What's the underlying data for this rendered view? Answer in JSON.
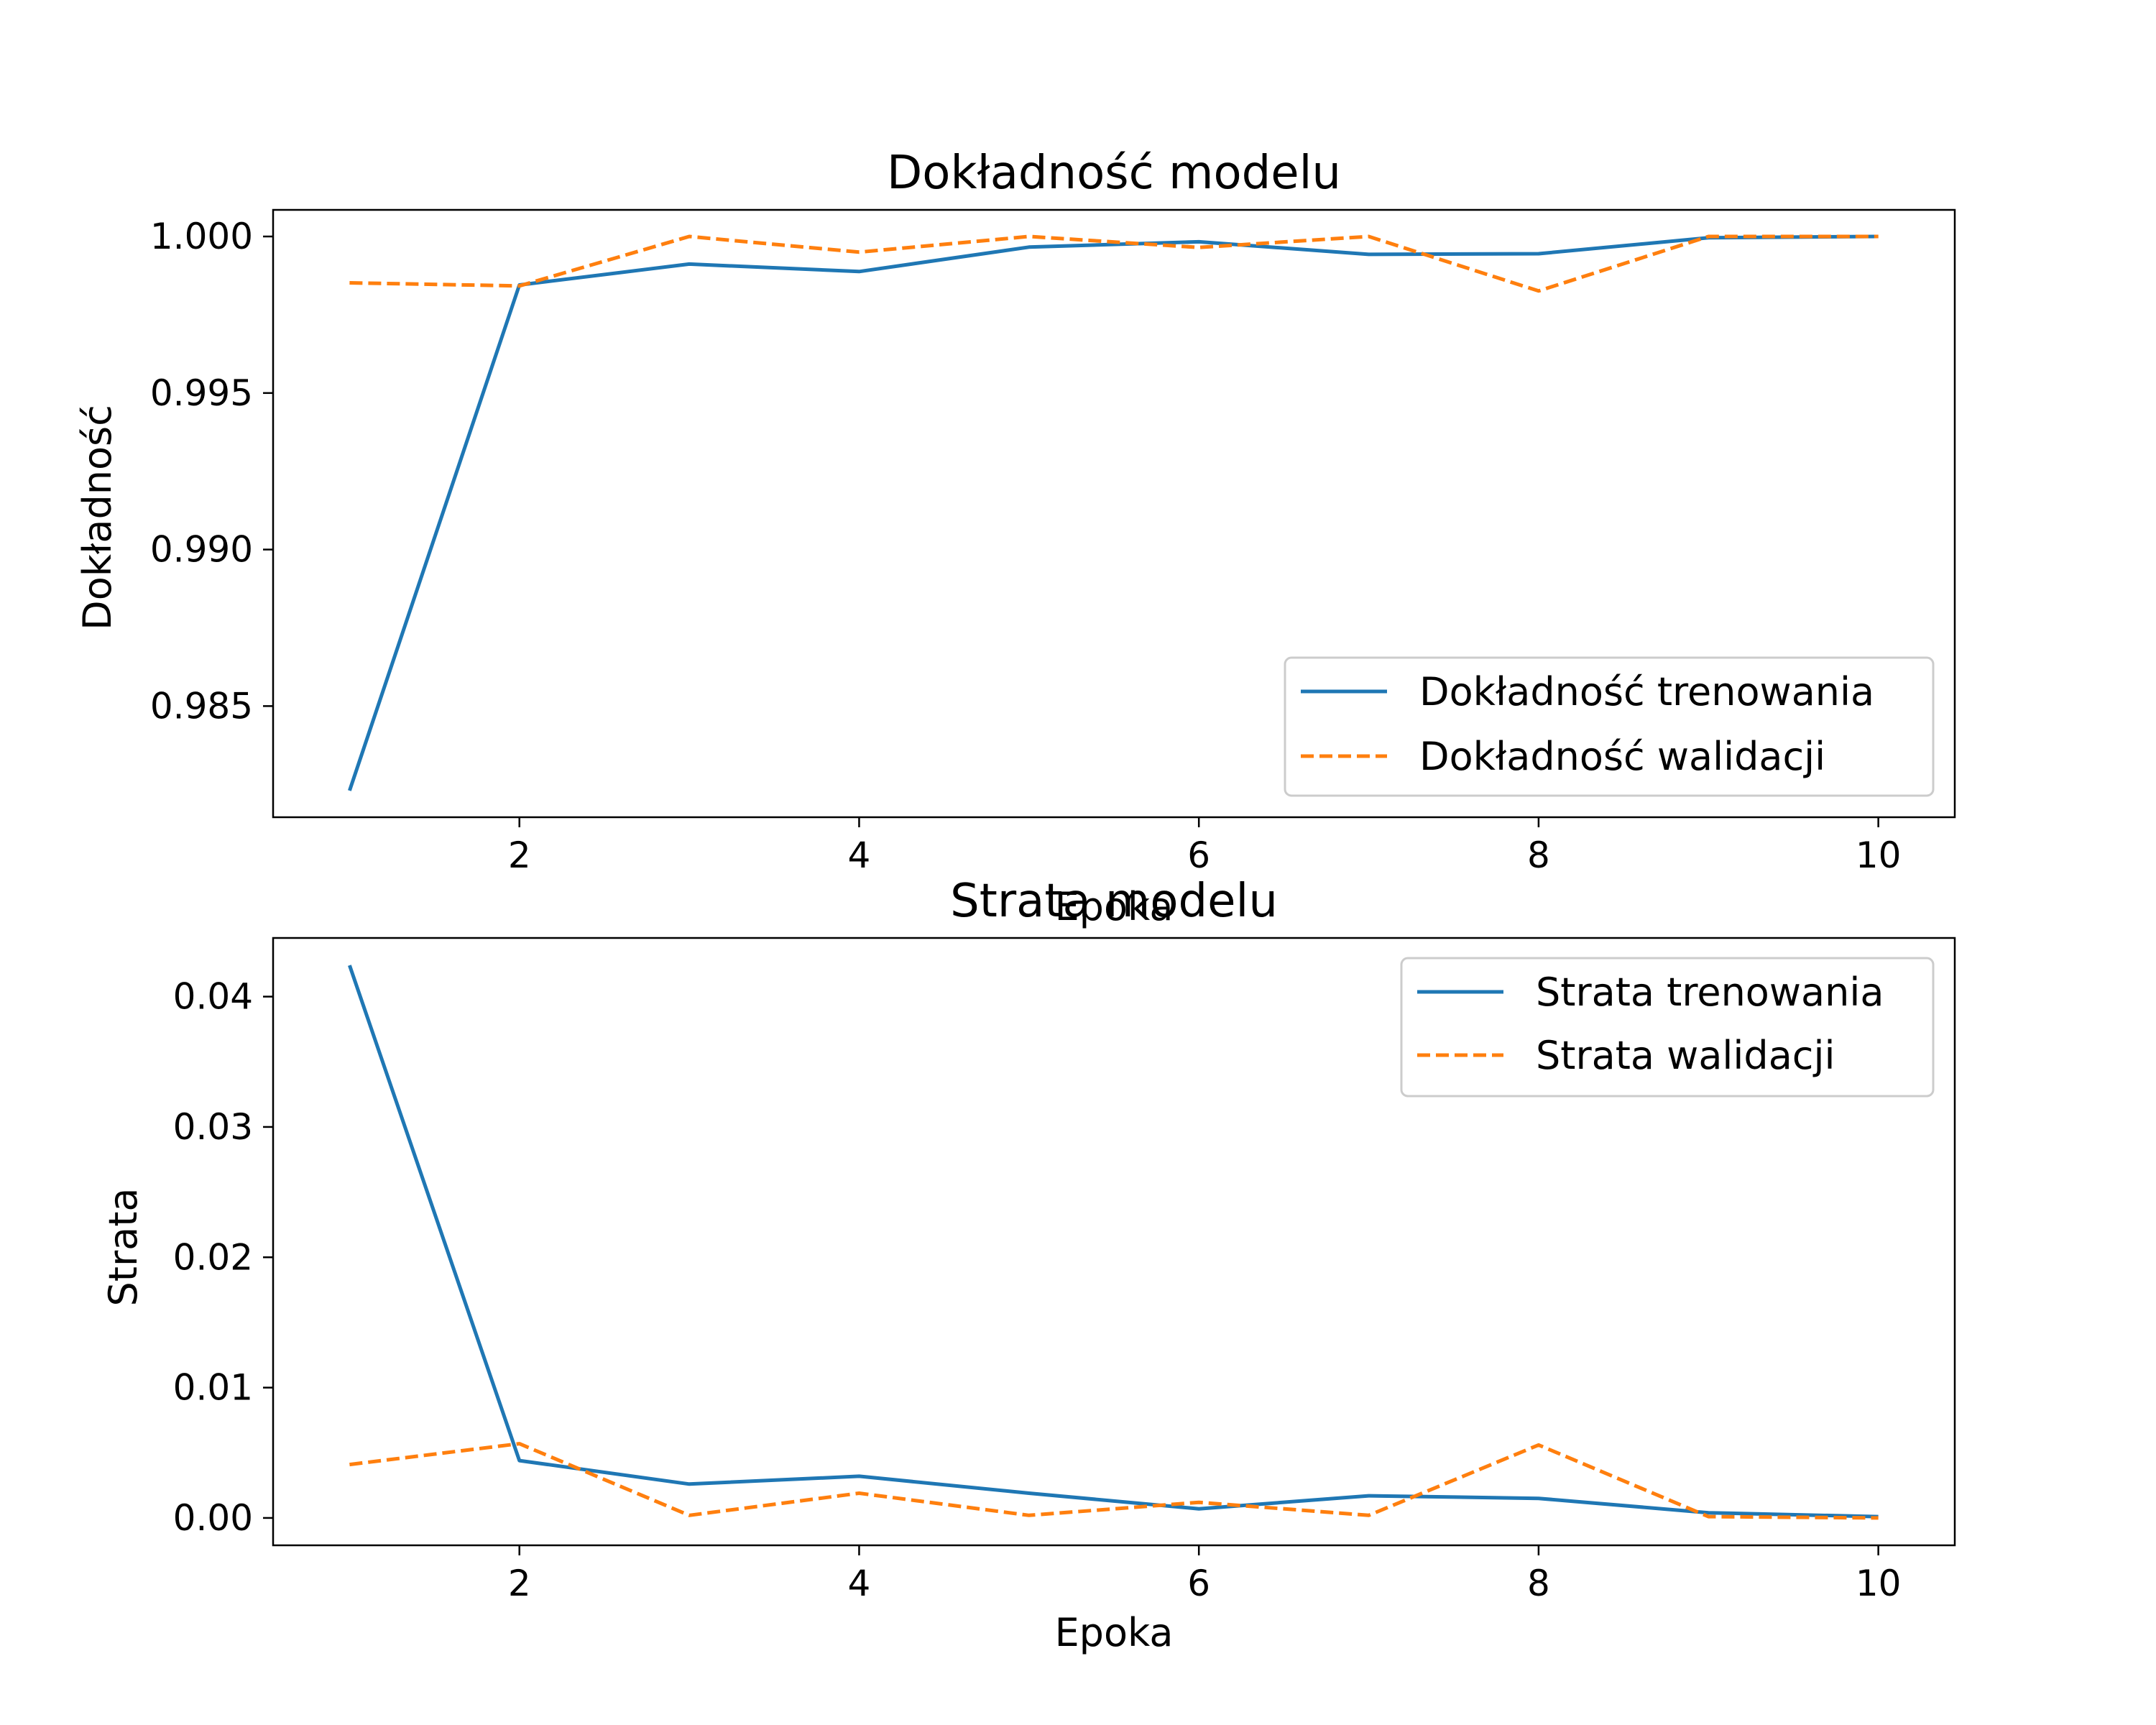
{
  "colors": {
    "train": "#1f77b4",
    "validation": "#ff7f0e"
  },
  "chart_data": [
    {
      "type": "line",
      "title": "Dokładność modelu",
      "xlabel": "Epoka",
      "ylabel": "Dokładność",
      "x": [
        1,
        2,
        3,
        4,
        5,
        6,
        7,
        8,
        9,
        10
      ],
      "xlim": [
        0.55,
        10.45
      ],
      "ylim": [
        0.98145,
        1.00085
      ],
      "xticks": [
        2,
        4,
        6,
        8,
        10
      ],
      "xtick_labels": [
        "2",
        "4",
        "6",
        "8",
        "10"
      ],
      "yticks": [
        0.985,
        0.99,
        0.995,
        1.0
      ],
      "ytick_labels": [
        "0.985",
        "0.990",
        "0.995",
        "1.000"
      ],
      "legend_position": "lower-right",
      "grid": false,
      "series": [
        {
          "name": "Dokładność trenowania",
          "style": "solid",
          "values": [
            0.9823,
            0.99845,
            0.99912,
            0.99888,
            0.99966,
            0.99983,
            0.99943,
            0.99945,
            0.99996,
            1.0
          ]
        },
        {
          "name": "Dokładność walidacji",
          "style": "dashed",
          "values": [
            0.99852,
            0.99842,
            1.0,
            0.9995,
            1.0,
            0.99965,
            1.0,
            0.99826,
            1.0,
            1.0
          ]
        }
      ]
    },
    {
      "type": "line",
      "title": "Strata modelu",
      "xlabel": "Epoka",
      "ylabel": "Strata",
      "x": [
        1,
        2,
        3,
        4,
        5,
        6,
        7,
        8,
        9,
        10
      ],
      "xlim": [
        0.55,
        10.45
      ],
      "ylim": [
        -0.0021,
        0.0445
      ],
      "xticks": [
        2,
        4,
        6,
        8,
        10
      ],
      "xtick_labels": [
        "2",
        "4",
        "6",
        "8",
        "10"
      ],
      "yticks": [
        0.0,
        0.01,
        0.02,
        0.03,
        0.04
      ],
      "ytick_labels": [
        "0.00",
        "0.01",
        "0.02",
        "0.03",
        "0.04"
      ],
      "legend_position": "upper-right",
      "grid": false,
      "series": [
        {
          "name": "Strata trenowania",
          "style": "solid",
          "values": [
            0.0424,
            0.0044,
            0.0026,
            0.0032,
            0.0019,
            0.0007,
            0.0017,
            0.0015,
            0.0004,
            0.0001
          ]
        },
        {
          "name": "Strata walidacji",
          "style": "dashed",
          "values": [
            0.0041,
            0.0057,
            0.0002,
            0.0019,
            0.0002,
            0.0012,
            0.0002,
            0.0056,
            0.0001,
            0.0
          ]
        }
      ]
    }
  ]
}
